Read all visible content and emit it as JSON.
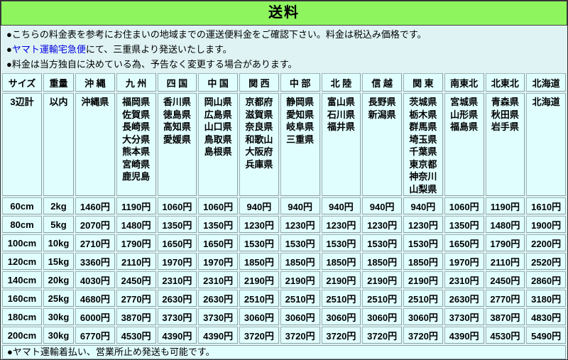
{
  "title": "送料",
  "colors": {
    "title_bg": "#8ef55f",
    "page_bg": "#dff3f4",
    "cell_bg": "#e1feff",
    "cell_border": "#8aa4a6",
    "price_text": "#1515cd",
    "link_text": "#0000e0",
    "text": "#000000"
  },
  "notes": [
    {
      "segments": [
        {
          "text": "●こちらの料金表を参考にお住まいの地域までの運送便料金をご確認下さい。料金は税込み価格です。"
        }
      ]
    },
    {
      "segments": [
        {
          "text": "●"
        },
        {
          "text": "ヤマト運輸宅急便",
          "link": true
        },
        {
          "text": "にて、三重県より発送いたします。"
        }
      ]
    },
    {
      "segments": [
        {
          "text": "●料金は当方独自に決めている為、予告なく変更する場合があります。"
        }
      ]
    }
  ],
  "table": {
    "size_header": "サイズ",
    "weight_header": "重量",
    "size_sub": "3辺計",
    "weight_sub": "以内",
    "regions": [
      {
        "label": "沖 縄",
        "prefectures": [
          "沖縄県"
        ]
      },
      {
        "label": "九 州",
        "prefectures": [
          "福岡県",
          "佐賀県",
          "長崎県",
          "大分県",
          "熊本県",
          "宮崎県",
          "鹿児島"
        ]
      },
      {
        "label": "四 国",
        "prefectures": [
          "香川県",
          "徳島県",
          "高知県",
          "愛媛県"
        ]
      },
      {
        "label": "中 国",
        "prefectures": [
          "岡山県",
          "広島県",
          "山口県",
          "鳥取県",
          "島根県"
        ]
      },
      {
        "label": "関 西",
        "prefectures": [
          "京都府",
          "滋賀県",
          "奈良県",
          "和歌山",
          "大阪府",
          "兵庫県"
        ]
      },
      {
        "label": "中 部",
        "prefectures": [
          "静岡県",
          "愛知県",
          "岐阜県",
          "三重県"
        ]
      },
      {
        "label": "北 陸",
        "prefectures": [
          "富山県",
          "石川県",
          "福井県"
        ]
      },
      {
        "label": "信 越",
        "prefectures": [
          "長野県",
          "新潟県"
        ]
      },
      {
        "label": "関 東",
        "prefectures": [
          "茨城県",
          "栃木県",
          "群馬県",
          "埼玉県",
          "千葉県",
          "東京都",
          "神奈川",
          "山梨県"
        ]
      },
      {
        "label": "南東北",
        "prefectures": [
          "宮城県",
          "山形県",
          "福島県"
        ]
      },
      {
        "label": "北東北",
        "prefectures": [
          "青森県",
          "秋田県",
          "岩手県"
        ]
      },
      {
        "label": "北海道",
        "prefectures": [
          "北海道"
        ]
      }
    ],
    "rows": [
      {
        "size": "60cm",
        "weight": "2kg",
        "prices": [
          "1460円",
          "1190円",
          "1060円",
          "1060円",
          "940円",
          "940円",
          "940円",
          "940円",
          "940円",
          "1060円",
          "1190円",
          "1610円"
        ]
      },
      {
        "size": "80cm",
        "weight": "5kg",
        "prices": [
          "2070円",
          "1480円",
          "1350円",
          "1350円",
          "1230円",
          "1230円",
          "1230円",
          "1230円",
          "1230円",
          "1350円",
          "1480円",
          "1900円"
        ]
      },
      {
        "size": "100cm",
        "weight": "10kg",
        "prices": [
          "2710円",
          "1790円",
          "1650円",
          "1650円",
          "1530円",
          "1530円",
          "1530円",
          "1530円",
          "1530円",
          "1650円",
          "1790円",
          "2200円"
        ]
      },
      {
        "size": "120cm",
        "weight": "15kg",
        "prices": [
          "3360円",
          "2110円",
          "1970円",
          "1970円",
          "1850円",
          "1850円",
          "1850円",
          "1850円",
          "1850円",
          "1970円",
          "2110円",
          "2520円"
        ]
      },
      {
        "size": "140cm",
        "weight": "20kg",
        "prices": [
          "4030円",
          "2450円",
          "2310円",
          "2310円",
          "2190円",
          "2190円",
          "2190円",
          "2190円",
          "2190円",
          "2310円",
          "2450円",
          "2860円"
        ]
      },
      {
        "size": "160cm",
        "weight": "25kg",
        "prices": [
          "4680円",
          "2770円",
          "2630円",
          "2630円",
          "2510円",
          "2510円",
          "2510円",
          "2510円",
          "2510円",
          "2630円",
          "2770円",
          "3180円"
        ]
      },
      {
        "size": "180cm",
        "weight": "30kg",
        "prices": [
          "6000円",
          "3870円",
          "3730円",
          "3730円",
          "3060円",
          "3060円",
          "3060円",
          "3060円",
          "3060円",
          "3730円",
          "3870円",
          "4830円"
        ]
      },
      {
        "size": "200cm",
        "weight": "30kg",
        "prices": [
          "6770円",
          "4530円",
          "4390円",
          "4390円",
          "3720円",
          "3720円",
          "3720円",
          "3720円",
          "3720円",
          "4390円",
          "4530円",
          "5490円"
        ]
      }
    ]
  },
  "footer_note": "●ヤマト運輸着払い、営業所止め発送も可能です。"
}
